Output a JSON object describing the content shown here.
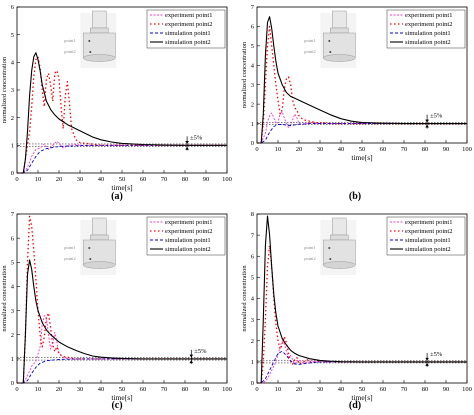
{
  "panel_labels": [
    "(a)",
    "(b)",
    "(c)",
    "(d)"
  ],
  "legend_labels": [
    "experiment point1",
    "experiment point2",
    "simulation point1",
    "simulation point2"
  ],
  "inset_labels": {
    "point1": "point1",
    "point2": "point2"
  },
  "tolerance_label": "±5%",
  "x_axis_label": "time[s]",
  "y_axis_label": "normalized concentration",
  "x_ticks": [
    0,
    10,
    20,
    30,
    40,
    50,
    60,
    70,
    80,
    90,
    100
  ],
  "colors": {
    "experiment_point1": "#ff33cc",
    "experiment_point2": "#ff0000",
    "simulation_point1": "#0000cc",
    "simulation_point2": "#000000"
  },
  "chart_data": [
    {
      "type": "line",
      "panel": "(a)",
      "xlim": [
        0,
        100
      ],
      "ylim": [
        0,
        6
      ],
      "yticks": [
        0,
        1,
        2,
        3,
        4,
        5,
        6
      ],
      "tolerance_band": [
        0.95,
        1.05
      ],
      "tolerance_marker_x": 81,
      "series": [
        {
          "name": "experiment point1",
          "x": [
            0,
            3,
            5,
            7,
            9,
            11,
            13,
            15,
            17,
            19,
            22,
            26,
            30,
            40,
            50,
            60,
            70,
            80,
            90,
            100
          ],
          "y": [
            0,
            0,
            0.2,
            0.6,
            0.85,
            0.9,
            1.05,
            0.85,
            1.0,
            1.15,
            0.9,
            1.05,
            1.0,
            1.0,
            1.0,
            1.0,
            1.0,
            1.0,
            1.0,
            1.0
          ]
        },
        {
          "name": "experiment point2",
          "x": [
            0,
            3,
            4,
            6,
            7,
            8,
            9,
            10,
            11,
            12,
            13,
            14,
            15,
            16,
            17,
            18,
            19,
            20,
            21,
            22,
            23,
            24,
            25,
            26,
            28,
            30,
            35,
            40,
            50,
            60,
            70,
            80,
            90,
            100
          ],
          "y": [
            0,
            0,
            0.5,
            1.5,
            2.4,
            3.5,
            4.1,
            4.2,
            3.8,
            3.0,
            2.4,
            3.4,
            3.6,
            3.2,
            2.6,
            3.6,
            3.7,
            3.4,
            2.4,
            1.6,
            2.8,
            3.3,
            2.5,
            1.6,
            1.2,
            1.1,
            1.05,
            1.0,
            1.0,
            1.0,
            1.0,
            1.0,
            1.0,
            1.0
          ]
        },
        {
          "name": "simulation point1",
          "x": [
            0,
            3,
            5,
            7,
            9,
            11,
            14,
            18,
            22,
            26,
            30,
            40,
            50,
            60,
            70,
            80,
            90,
            100
          ],
          "y": [
            0,
            0,
            0.1,
            0.35,
            0.6,
            0.78,
            0.88,
            0.94,
            0.97,
            0.98,
            0.99,
            1.0,
            1.0,
            1.0,
            1.0,
            1.0,
            1.0,
            1.0
          ]
        },
        {
          "name": "simulation point2",
          "x": [
            0,
            3,
            4,
            5,
            6,
            7,
            8,
            9,
            10,
            11,
            12,
            14,
            16,
            18,
            20,
            24,
            28,
            32,
            36,
            40,
            45,
            50,
            60,
            70,
            80,
            90,
            100
          ],
          "y": [
            0,
            0,
            0.5,
            1.5,
            2.8,
            3.7,
            4.2,
            4.35,
            4.1,
            3.7,
            3.2,
            2.6,
            2.3,
            2.1,
            1.95,
            1.75,
            1.6,
            1.45,
            1.3,
            1.2,
            1.12,
            1.07,
            1.03,
            1.01,
            1.0,
            1.0,
            1.0
          ]
        }
      ]
    },
    {
      "type": "line",
      "panel": "(b)",
      "xlim": [
        0,
        100
      ],
      "ylim": [
        0,
        7
      ],
      "yticks": [
        0,
        1,
        2,
        3,
        4,
        5,
        6,
        7
      ],
      "tolerance_band": [
        0.95,
        1.05
      ],
      "tolerance_marker_x": 81,
      "series": [
        {
          "name": "experiment point1",
          "x": [
            0,
            2,
            4,
            5,
            6,
            7,
            8,
            9,
            10,
            11,
            12,
            13,
            14,
            15,
            16,
            17,
            18,
            19,
            20,
            22,
            25,
            28,
            30,
            40,
            50,
            60,
            70,
            80,
            90,
            100
          ],
          "y": [
            0,
            0,
            0.5,
            1.1,
            1.4,
            1.55,
            1.3,
            1.0,
            1.05,
            1.5,
            1.6,
            1.3,
            1.0,
            0.8,
            0.9,
            1.2,
            1.5,
            1.3,
            1.0,
            0.95,
            1.05,
            1.0,
            1.0,
            1.0,
            1.0,
            1.0,
            1.0,
            1.0,
            1.0,
            1.0
          ]
        },
        {
          "name": "experiment point2",
          "x": [
            0,
            2,
            3,
            4,
            5,
            6,
            7,
            8,
            9,
            10,
            11,
            12,
            13,
            14,
            15,
            16,
            17,
            18,
            19,
            20,
            22,
            24,
            26,
            28,
            30,
            35,
            40,
            50,
            60,
            70,
            80,
            90,
            100
          ],
          "y": [
            0,
            0,
            1.0,
            3.0,
            5.0,
            6.0,
            5.0,
            4.0,
            3.0,
            2.2,
            1.5,
            1.7,
            2.8,
            3.3,
            3.4,
            3.0,
            2.2,
            1.8,
            1.7,
            1.4,
            1.2,
            1.15,
            1.1,
            1.05,
            1.05,
            1.0,
            1.0,
            1.0,
            1.0,
            1.0,
            1.0,
            1.0,
            1.0
          ]
        },
        {
          "name": "simulation point1",
          "x": [
            0,
            2,
            4,
            6,
            8,
            10,
            12,
            14,
            16,
            18,
            20,
            25,
            30,
            40,
            50,
            60,
            70,
            80,
            90,
            100
          ],
          "y": [
            0,
            0,
            0.15,
            0.55,
            0.85,
            0.95,
            0.95,
            0.92,
            0.9,
            0.93,
            0.97,
            1.0,
            1.0,
            1.0,
            1.0,
            1.0,
            1.0,
            1.0,
            1.0,
            1.0
          ]
        },
        {
          "name": "simulation point2",
          "x": [
            0,
            2,
            3,
            4,
            5,
            6,
            7,
            8,
            9,
            10,
            12,
            14,
            16,
            18,
            20,
            25,
            30,
            35,
            40,
            45,
            50,
            60,
            70,
            80,
            90,
            100
          ],
          "y": [
            0,
            0,
            1.5,
            4.5,
            6.2,
            6.5,
            5.9,
            5.0,
            4.2,
            3.6,
            3.0,
            2.6,
            2.4,
            2.3,
            2.2,
            1.95,
            1.7,
            1.45,
            1.25,
            1.12,
            1.05,
            1.02,
            1.0,
            1.0,
            1.0,
            1.0
          ]
        }
      ]
    },
    {
      "type": "line",
      "panel": "(c)",
      "xlim": [
        0,
        100
      ],
      "ylim": [
        0,
        7
      ],
      "yticks": [
        0,
        1,
        2,
        3,
        4,
        5,
        6,
        7
      ],
      "tolerance_band": [
        0.95,
        1.05
      ],
      "tolerance_marker_x": 83,
      "series": [
        {
          "name": "experiment point1",
          "x": [
            0,
            3,
            5,
            7,
            9,
            11,
            12,
            13,
            14,
            15,
            16,
            17,
            18,
            19,
            20,
            22,
            25,
            30,
            40,
            50,
            60,
            70,
            80,
            90,
            100
          ],
          "y": [
            0,
            0,
            0.3,
            0.7,
            0.9,
            1.5,
            2.4,
            2.8,
            2.7,
            2.0,
            1.4,
            1.6,
            2.1,
            1.7,
            1.2,
            1.05,
            1.0,
            1.0,
            1.0,
            1.0,
            1.0,
            1.0,
            1.0,
            1.0,
            1.0
          ]
        },
        {
          "name": "experiment point2",
          "x": [
            0,
            3,
            4,
            5,
            6,
            7,
            8,
            9,
            10,
            11,
            12,
            13,
            14,
            15,
            16,
            17,
            18,
            19,
            20,
            22,
            25,
            28,
            30,
            40,
            50,
            60,
            70,
            80,
            90,
            100
          ],
          "y": [
            0,
            0,
            2.0,
            5.0,
            6.9,
            6.5,
            5.5,
            4.3,
            3.0,
            2.0,
            1.5,
            1.9,
            2.7,
            2.9,
            2.3,
            1.6,
            1.3,
            1.5,
            1.2,
            1.1,
            1.05,
            1.0,
            1.0,
            1.0,
            1.0,
            1.0,
            1.0,
            1.0,
            1.0,
            1.0
          ]
        },
        {
          "name": "simulation point1",
          "x": [
            0,
            3,
            5,
            7,
            9,
            11,
            14,
            18,
            22,
            26,
            30,
            40,
            50,
            60,
            70,
            80,
            90,
            100
          ],
          "y": [
            0,
            0,
            0.1,
            0.4,
            0.65,
            0.82,
            0.92,
            0.96,
            0.98,
            0.99,
            1.0,
            1.0,
            1.0,
            1.0,
            1.0,
            1.0,
            1.0,
            1.0
          ]
        },
        {
          "name": "simulation point2",
          "x": [
            0,
            3,
            4,
            5,
            6,
            7,
            8,
            9,
            10,
            12,
            14,
            16,
            18,
            20,
            24,
            28,
            32,
            36,
            40,
            45,
            50,
            60,
            70,
            80,
            90,
            100
          ],
          "y": [
            0,
            0,
            2.0,
            4.5,
            5.1,
            4.7,
            4.0,
            3.4,
            3.0,
            2.5,
            2.2,
            2.0,
            1.85,
            1.7,
            1.5,
            1.35,
            1.22,
            1.12,
            1.07,
            1.04,
            1.02,
            1.0,
            1.0,
            1.0,
            1.0,
            1.0
          ]
        }
      ]
    },
    {
      "type": "line",
      "panel": "(d)",
      "xlim": [
        0,
        100
      ],
      "ylim": [
        0,
        8
      ],
      "yticks": [
        0,
        1,
        2,
        3,
        4,
        5,
        6,
        7,
        8
      ],
      "tolerance_band": [
        0.95,
        1.05
      ],
      "tolerance_marker_x": 81,
      "series": [
        {
          "name": "experiment point1",
          "x": [
            0,
            3,
            5,
            7,
            9,
            11,
            12,
            13,
            14,
            15,
            16,
            17,
            18,
            19,
            20,
            22,
            24,
            26,
            28,
            30,
            40,
            50,
            60,
            70,
            80,
            90,
            100
          ],
          "y": [
            0,
            0,
            0.2,
            0.6,
            1.0,
            1.7,
            2.0,
            1.9,
            1.5,
            1.2,
            1.3,
            1.1,
            0.9,
            1.05,
            1.1,
            0.95,
            1.0,
            1.05,
            1.0,
            1.0,
            1.0,
            1.0,
            1.0,
            1.0,
            1.0,
            1.0,
            1.0
          ]
        },
        {
          "name": "experiment point2",
          "x": [
            0,
            2,
            3,
            4,
            5,
            6,
            7,
            8,
            9,
            10,
            11,
            12,
            13,
            14,
            15,
            16,
            17,
            18,
            19,
            20,
            22,
            24,
            26,
            28,
            30,
            35,
            40,
            50,
            60,
            70,
            80,
            90,
            100
          ],
          "y": [
            0,
            0,
            1.0,
            3.0,
            5.5,
            6.5,
            5.5,
            4.0,
            2.8,
            2.0,
            1.6,
            1.8,
            2.2,
            1.9,
            1.4,
            1.0,
            0.9,
            1.1,
            1.2,
            0.9,
            1.0,
            1.1,
            0.95,
            1.0,
            1.05,
            1.0,
            1.0,
            1.0,
            1.0,
            1.0,
            1.0,
            1.0,
            1.0
          ]
        },
        {
          "name": "simulation point1",
          "x": [
            0,
            2,
            4,
            6,
            8,
            10,
            12,
            14,
            16,
            18,
            20,
            25,
            30,
            40,
            50,
            60,
            70,
            80,
            90,
            100
          ],
          "y": [
            0,
            0,
            0.2,
            0.6,
            1.0,
            1.4,
            1.5,
            1.3,
            1.05,
            0.9,
            0.88,
            0.95,
            1.0,
            1.0,
            1.0,
            1.0,
            1.0,
            1.0,
            1.0,
            1.0
          ]
        },
        {
          "name": "simulation point2",
          "x": [
            0,
            2,
            3,
            4,
            5,
            6,
            7,
            8,
            9,
            10,
            12,
            14,
            16,
            18,
            20,
            25,
            30,
            35,
            40,
            50,
            60,
            70,
            80,
            90,
            100
          ],
          "y": [
            0,
            0,
            3.0,
            6.5,
            7.9,
            7.0,
            5.5,
            4.2,
            3.3,
            2.7,
            2.1,
            1.8,
            1.55,
            1.4,
            1.3,
            1.15,
            1.07,
            1.03,
            1.01,
            1.0,
            1.0,
            1.0,
            1.0,
            1.0,
            1.0
          ]
        }
      ]
    }
  ]
}
